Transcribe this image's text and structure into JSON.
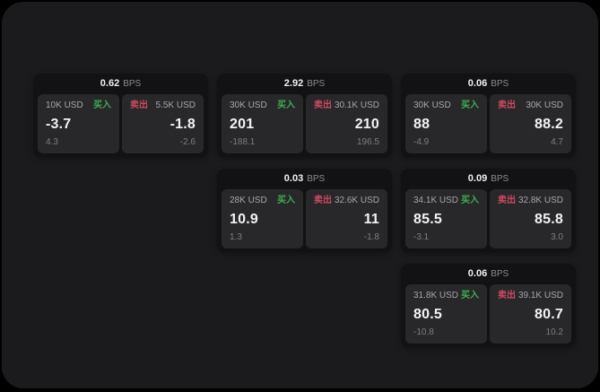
{
  "labels": {
    "bps_unit": "BPS",
    "buy": "买入",
    "sell": "卖出"
  },
  "colors": {
    "page_bg": "#000000",
    "surface_bg": "#1b1b1d",
    "card_bg": "#121214",
    "panel_bg": "#28282b",
    "buy_green": "#3fae52",
    "sell_red": "#cd4a60",
    "value_white": "#f3f3f4",
    "label_gray": "#a6a6ab",
    "muted_gray": "#7e7e83",
    "bps_gray": "#8c8c91"
  },
  "cards": [
    {
      "spread_bps": "0.62",
      "buy": {
        "notional": "10K USD",
        "price": "-3.7",
        "delta": "4.3"
      },
      "sell": {
        "notional": "5.5K USD",
        "price": "-1.8",
        "delta": "-2.6"
      }
    },
    {
      "spread_bps": "2.92",
      "buy": {
        "notional": "30K USD",
        "price": "201",
        "delta": "-188.1"
      },
      "sell": {
        "notional": "30.1K USD",
        "price": "210",
        "delta": "196.5"
      }
    },
    {
      "spread_bps": "0.06",
      "buy": {
        "notional": "30K USD",
        "price": "88",
        "delta": "-4.9"
      },
      "sell": {
        "notional": "30K USD",
        "price": "88.2",
        "delta": "4.7"
      }
    },
    {
      "spread_bps": "0.03",
      "buy": {
        "notional": "28K USD",
        "price": "10.9",
        "delta": "1.3"
      },
      "sell": {
        "notional": "32.6K USD",
        "price": "11",
        "delta": "-1.8"
      }
    },
    {
      "spread_bps": "0.09",
      "buy": {
        "notional": "34.1K USD",
        "price": "85.5",
        "delta": "-3.1"
      },
      "sell": {
        "notional": "32.8K USD",
        "price": "85.8",
        "delta": "3.0"
      }
    },
    {
      "spread_bps": "0.06",
      "buy": {
        "notional": "31.8K USD",
        "price": "80.5",
        "delta": "-10.8"
      },
      "sell": {
        "notional": "39.1K USD",
        "price": "80.7",
        "delta": "10.2"
      }
    }
  ]
}
